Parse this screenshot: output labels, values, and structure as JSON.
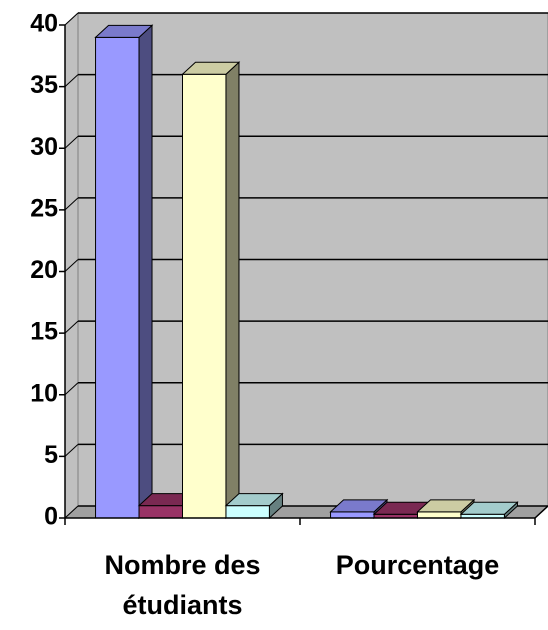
{
  "chart_data": {
    "type": "bar3d",
    "categories": [
      "Nombre des étudiants",
      "Pourcentage"
    ],
    "series": [
      {
        "color": "#9999ff",
        "values": [
          39,
          0.5
        ]
      },
      {
        "color": "#993366",
        "values": [
          1,
          0.3
        ]
      },
      {
        "color": "#ffffcc",
        "values": [
          36,
          0.5
        ]
      },
      {
        "color": "#ccffff",
        "values": [
          1,
          0.3
        ]
      }
    ],
    "ylim": [
      0,
      40
    ],
    "yticks": [
      0,
      5,
      10,
      15,
      20,
      25,
      30,
      35,
      40
    ],
    "grid": true
  }
}
